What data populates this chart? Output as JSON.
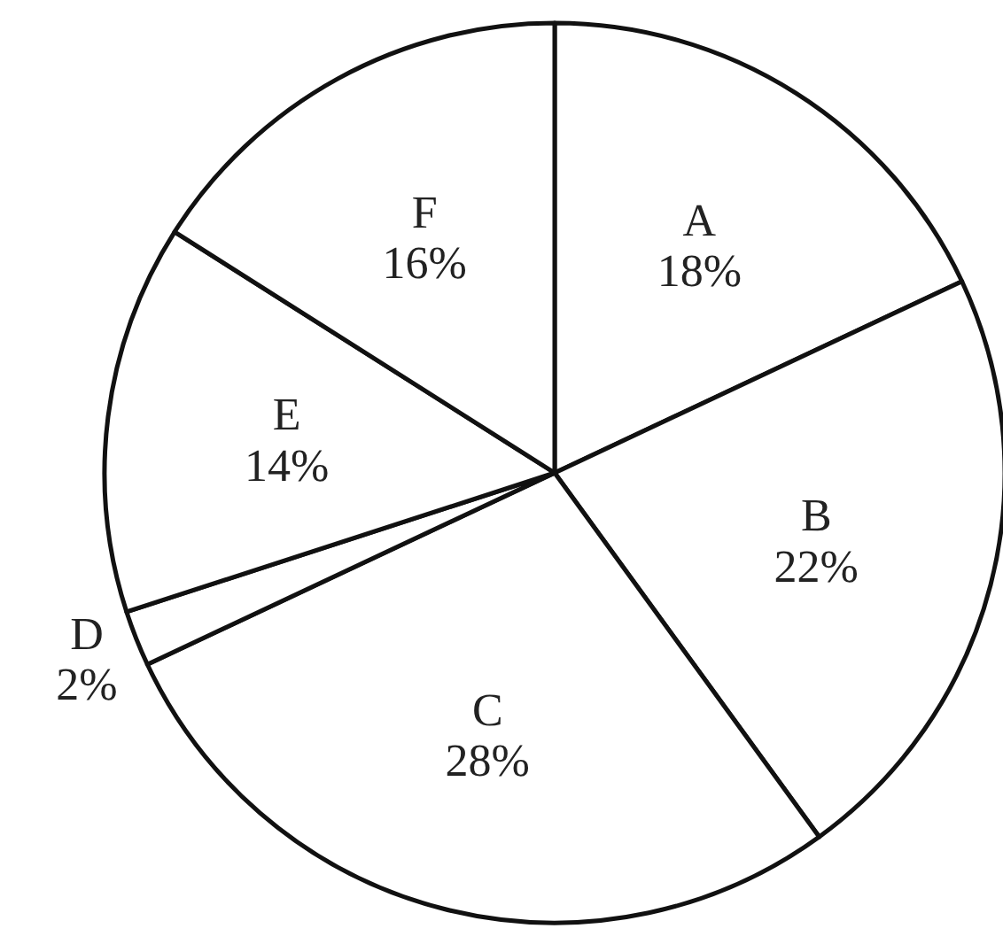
{
  "chart_data": {
    "type": "pie",
    "categories": [
      "A",
      "B",
      "C",
      "D",
      "E",
      "F"
    ],
    "values": [
      18,
      22,
      28,
      2,
      14,
      16
    ],
    "value_labels": [
      "18%",
      "22%",
      "28%",
      "2%",
      "14%",
      "16%"
    ],
    "colors": [
      "#ffffff",
      "#ffffff",
      "#ffffff",
      "#ffffff",
      "#ffffff",
      "#ffffff"
    ]
  }
}
